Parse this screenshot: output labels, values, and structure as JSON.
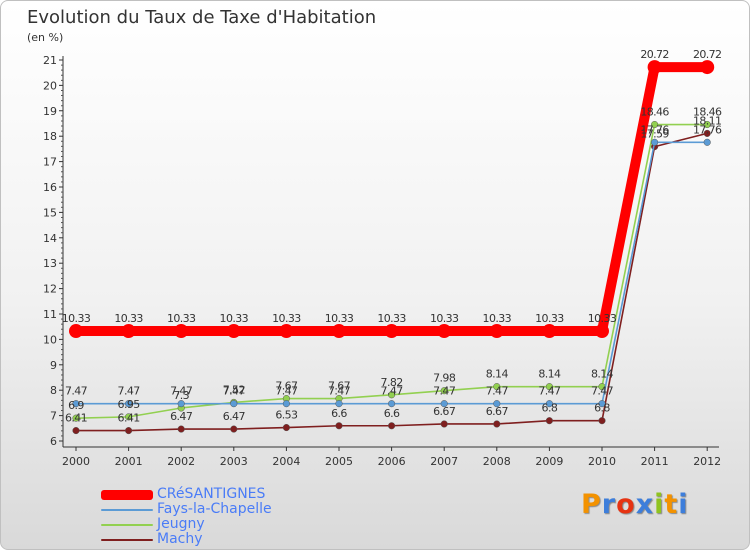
{
  "header": {
    "title": "Evolution du Taux de Taxe d'Habitation",
    "subtitle": "(en %)"
  },
  "logo": {
    "text": "Proxiti",
    "colors": [
      "#f39200",
      "#3d7edb",
      "#e63312",
      "#3d7edb",
      "#8fc31f",
      "#f39200",
      "#3d7edb"
    ]
  },
  "chart_data": {
    "type": "line",
    "title": "Evolution du Taux de Taxe d'Habitation",
    "ylabel": "(en %)",
    "xlabel": "",
    "x": [
      "2000",
      "2001",
      "2002",
      "2003",
      "2004",
      "2005",
      "2006",
      "2007",
      "2008",
      "2009",
      "2010",
      "2011",
      "2012"
    ],
    "ylim": [
      6,
      21
    ],
    "yticks": [
      "6",
      "7",
      "8",
      "9",
      "10",
      "11",
      "12",
      "13",
      "14",
      "15",
      "16",
      "17",
      "18",
      "19",
      "20",
      "21"
    ],
    "grid": false,
    "legend": "bottom-left",
    "series": [
      {
        "name": "CRéSANTIGNES",
        "color": "#ff0000",
        "values": [
          10.33,
          10.33,
          10.33,
          10.33,
          10.33,
          10.33,
          10.33,
          10.33,
          10.33,
          10.33,
          10.33,
          20.72,
          20.72
        ],
        "labels": [
          "10.33",
          "10.33",
          "10.33",
          "10.33",
          "10.33",
          "10.33",
          "10.33",
          "10.33",
          "10.33",
          "10.33",
          "10.33",
          "20.72",
          "20.72"
        ]
      },
      {
        "name": "Fays-la-Chapelle",
        "color": "#5b9bd5",
        "values": [
          7.47,
          7.47,
          7.47,
          7.47,
          7.47,
          7.47,
          7.47,
          7.47,
          7.47,
          7.47,
          7.47,
          17.76,
          17.76
        ],
        "labels": [
          "7.47",
          "7.47",
          "7.47",
          "7.47",
          "7.47",
          "7.47",
          "7.47",
          "7.47",
          "7.47",
          "7.47",
          "7.47",
          "17.76",
          "17.76"
        ]
      },
      {
        "name": "Jeugny",
        "color": "#92d050",
        "values": [
          6.9,
          6.95,
          7.3,
          7.52,
          7.67,
          7.67,
          7.82,
          7.98,
          8.14,
          8.14,
          8.14,
          18.46,
          18.46
        ],
        "labels": [
          "6.9",
          "6.95",
          "7.3",
          "7.52",
          "7.67",
          "7.67",
          "7.82",
          "7.98",
          "8.14",
          "8.14",
          "8.14",
          "18.46",
          "18.46"
        ]
      },
      {
        "name": "Machy",
        "color": "#7f1f1f",
        "values": [
          6.41,
          6.41,
          6.47,
          6.47,
          6.53,
          6.6,
          6.6,
          6.67,
          6.67,
          6.8,
          6.8,
          17.59,
          18.11
        ],
        "labels": [
          "6.41",
          "6.41",
          "6.47",
          "6.47",
          "6.53",
          "6.6",
          "6.6",
          "6.67",
          "6.67",
          "6.8",
          "6.8",
          "17.59",
          "18.11"
        ]
      }
    ]
  }
}
